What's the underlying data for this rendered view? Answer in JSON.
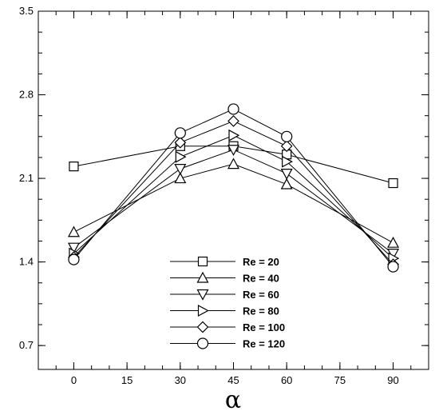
{
  "chart_data": {
    "type": "line",
    "title": "",
    "xlabel": "α",
    "ylabel": "",
    "x": [
      0,
      30,
      45,
      60,
      90
    ],
    "xlim": [
      -10,
      100
    ],
    "ylim": [
      0.5,
      3.5
    ],
    "x_ticks": [
      "0",
      "15",
      "30",
      "45",
      "60",
      "75",
      "90"
    ],
    "y_ticks": [
      "0.7",
      "1.4",
      "2.1",
      "2.8",
      "3.5"
    ],
    "grid": false,
    "legend_position": "lower-center",
    "series": [
      {
        "name": "Re = 20",
        "marker": "square",
        "values": [
          2.2,
          2.37,
          2.37,
          2.3,
          2.06
        ]
      },
      {
        "name": "Re = 40",
        "marker": "triangle-up",
        "values": [
          1.65,
          2.1,
          2.22,
          2.05,
          1.56
        ]
      },
      {
        "name": "Re = 60",
        "marker": "triangle-down",
        "values": [
          1.52,
          2.18,
          2.34,
          2.14,
          1.47
        ]
      },
      {
        "name": "Re = 80",
        "marker": "triangle-right",
        "values": [
          1.47,
          2.28,
          2.46,
          2.24,
          1.43
        ]
      },
      {
        "name": "Re = 100",
        "marker": "diamond",
        "values": [
          1.44,
          2.4,
          2.58,
          2.37,
          1.38
        ]
      },
      {
        "name": "Re = 120",
        "marker": "circle",
        "values": [
          1.42,
          2.48,
          2.68,
          2.45,
          1.36
        ]
      }
    ]
  }
}
